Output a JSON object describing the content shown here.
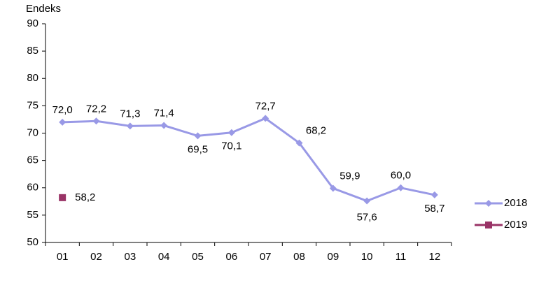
{
  "chart_data": {
    "type": "line",
    "y_label": "Endeks",
    "categories": [
      "01",
      "02",
      "03",
      "04",
      "05",
      "06",
      "07",
      "08",
      "09",
      "10",
      "11",
      "12"
    ],
    "series": [
      {
        "name": "2018",
        "color": "#9999e6",
        "marker": "diamond",
        "values": [
          72.0,
          72.2,
          71.3,
          71.4,
          69.5,
          70.1,
          72.7,
          68.2,
          59.9,
          57.6,
          60.0,
          58.7
        ],
        "value_labels": [
          "72,0",
          "72,2",
          "71,3",
          "71,4",
          "69,5",
          "70,1",
          "72,7",
          "68,2",
          "59,9",
          "57,6",
          "60,0",
          "58,7"
        ]
      },
      {
        "name": "2019",
        "color": "#993366",
        "marker": "square",
        "values": [
          58.2,
          null,
          null,
          null,
          null,
          null,
          null,
          null,
          null,
          null,
          null,
          null
        ],
        "value_labels": [
          "58,2",
          null,
          null,
          null,
          null,
          null,
          null,
          null,
          null,
          null,
          null,
          null
        ]
      }
    ],
    "ylim": [
      50,
      90
    ],
    "yticks": [
      50,
      55,
      60,
      65,
      70,
      75,
      80,
      85,
      90
    ],
    "grid": false,
    "legend": "right"
  }
}
